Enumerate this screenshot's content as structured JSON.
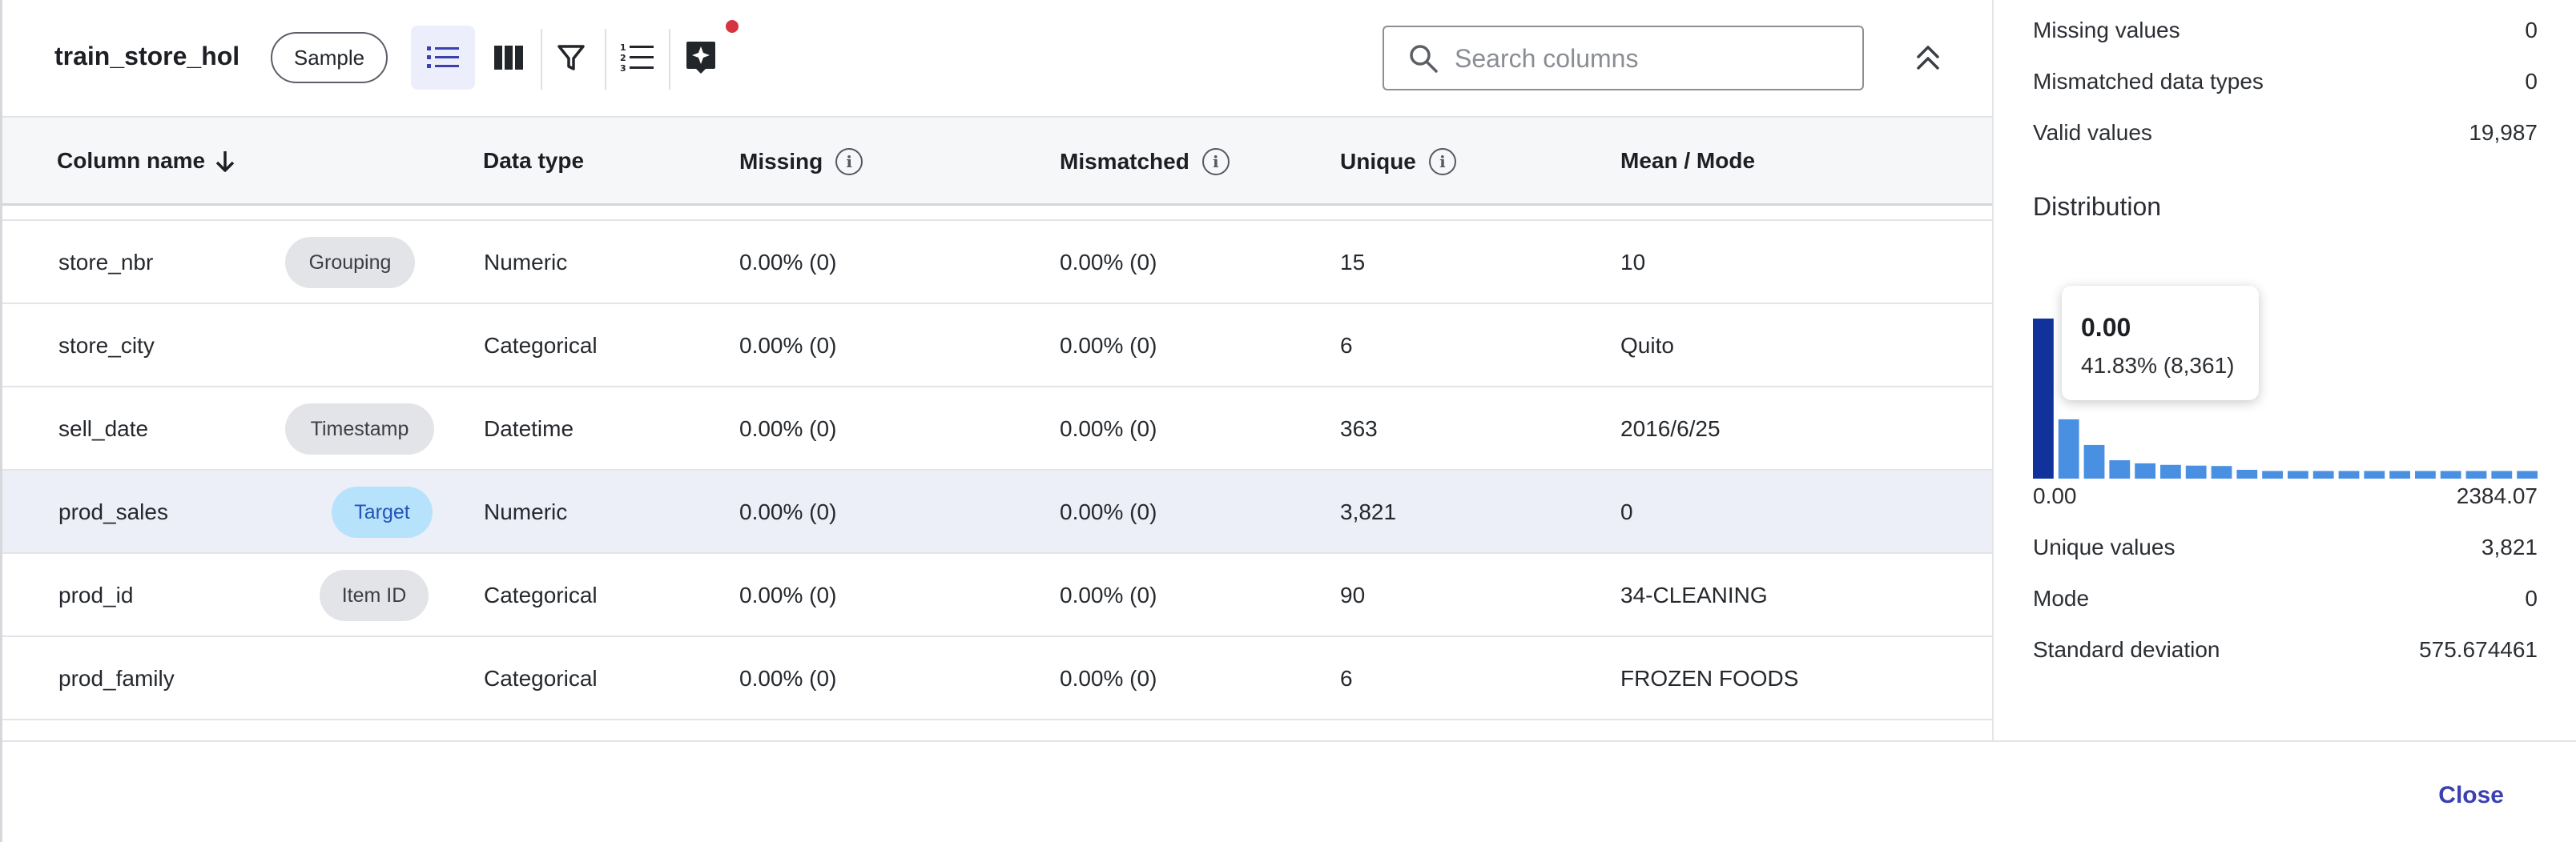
{
  "toolbar": {
    "dataset_name": "train_store_hol",
    "sample_label": "Sample",
    "search_placeholder": "Search columns"
  },
  "table": {
    "headers": {
      "column_name": "Column name",
      "data_type": "Data type",
      "missing": "Missing",
      "mismatched": "Mismatched",
      "unique": "Unique",
      "mean_mode": "Mean / Mode"
    },
    "info_glyph": "i",
    "rows": [
      {
        "name": "store_nbr",
        "badge": "Grouping",
        "type": "Numeric",
        "missing": "0.00% (0)",
        "mismatched": "0.00% (0)",
        "unique": "15",
        "mean_mode": "10"
      },
      {
        "name": "store_city",
        "badge": "",
        "type": "Categorical",
        "missing": "0.00% (0)",
        "mismatched": "0.00% (0)",
        "unique": "6",
        "mean_mode": "Quito"
      },
      {
        "name": "sell_date",
        "badge": "Timestamp",
        "type": "Datetime",
        "missing": "0.00% (0)",
        "mismatched": "0.00% (0)",
        "unique": "363",
        "mean_mode": "2016/6/25"
      },
      {
        "name": "prod_sales",
        "badge": "Target",
        "type": "Numeric",
        "missing": "0.00% (0)",
        "mismatched": "0.00% (0)",
        "unique": "3,821",
        "mean_mode": "0"
      },
      {
        "name": "prod_id",
        "badge": "Item ID",
        "type": "Categorical",
        "missing": "0.00% (0)",
        "mismatched": "0.00% (0)",
        "unique": "90",
        "mean_mode": "34-CLEANING"
      },
      {
        "name": "prod_family",
        "badge": "",
        "type": "Categorical",
        "missing": "0.00% (0)",
        "mismatched": "0.00% (0)",
        "unique": "6",
        "mean_mode": "FROZEN FOODS"
      }
    ]
  },
  "panel": {
    "missing_values_label": "Missing values",
    "missing_values": "0",
    "mismatched_label": "Mismatched data types",
    "mismatched": "0",
    "valid_label": "Valid values",
    "valid": "19,987",
    "distribution_title": "Distribution",
    "tooltip_value": "0.00",
    "tooltip_detail": "41.83% (8,361)",
    "x_min": "0.00",
    "x_max": "2384.07",
    "unique_label": "Unique values",
    "unique": "3,821",
    "mode_label": "Mode",
    "mode": "0",
    "std_label": "Standard deviation",
    "std": "575.674461"
  },
  "chart_data": {
    "type": "bar",
    "xlim": [
      0.0,
      2384.07
    ],
    "values_pct": [
      41.83,
      15.5,
      8.8,
      4.8,
      4.0,
      3.6,
      3.4,
      3.3,
      2.3,
      2.0,
      2.0,
      2.0,
      2.0,
      2.0,
      2.0,
      2.0,
      2.0,
      2.0,
      2.0,
      2.0
    ],
    "highlight_index": 0,
    "colors": {
      "bar": "#4a90e2",
      "highlight": "#10329a"
    }
  },
  "footer": {
    "close_label": "Close"
  },
  "colors": {
    "accent": "#3b3fb0",
    "target_badge": "#b7e2fb",
    "notification": "#d63440"
  },
  "icons": [
    "list-view-icon",
    "columns-view-icon",
    "filter-icon",
    "numbered-list-icon",
    "ai-sparkle-icon",
    "search-icon",
    "chevrons-up-icon",
    "info-icon",
    "sort-down-icon"
  ]
}
